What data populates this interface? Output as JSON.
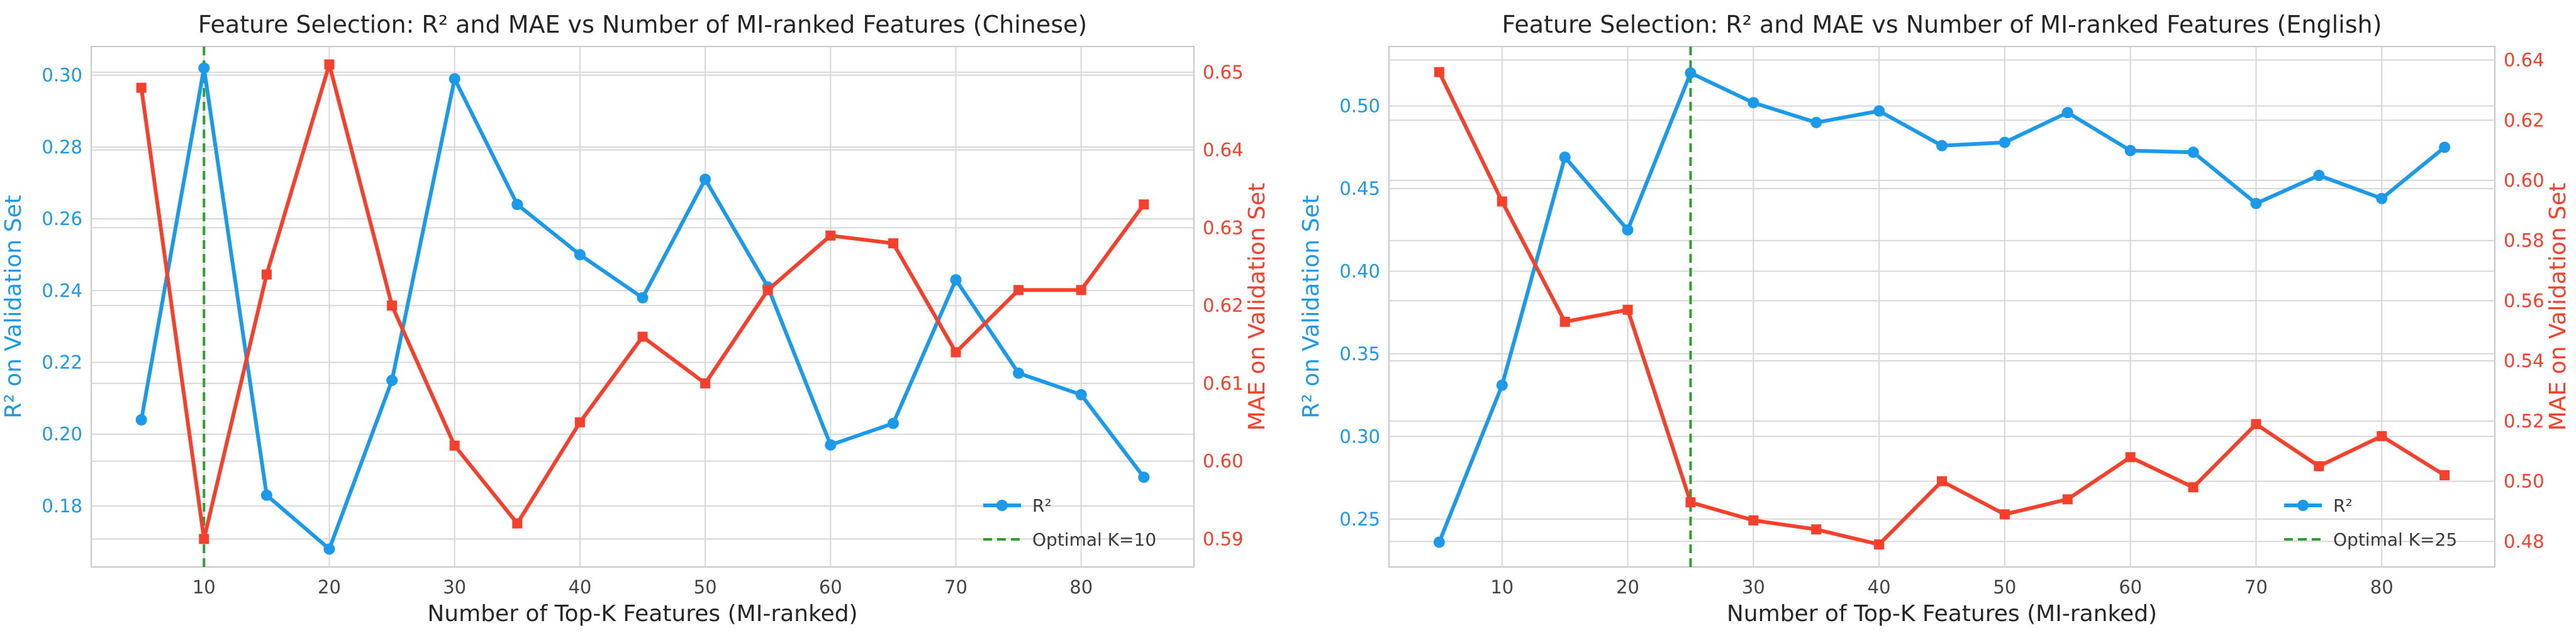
{
  "colors": {
    "r2": "#1a9ae8",
    "mae": "#f5402c",
    "optimal": "#2ca02c",
    "grid": "#d7d7d7",
    "axis_text": "#444444"
  },
  "chart_data": [
    {
      "type": "line",
      "title": "Feature Selection: R² and MAE vs Number of MI-ranked Features (Chinese)",
      "xlabel": "Number of Top-K Features (MI-ranked)",
      "ylabel": "R² on Validation Set",
      "ylabel_right": "MAE on Validation Set",
      "x": [
        5,
        10,
        15,
        20,
        25,
        30,
        35,
        40,
        45,
        50,
        55,
        60,
        65,
        70,
        75,
        80,
        85
      ],
      "xticks": [
        10,
        20,
        30,
        40,
        50,
        60,
        70,
        80
      ],
      "xlim": [
        1,
        89
      ],
      "ylim": [
        0.163,
        0.308
      ],
      "yticks": [
        0.18,
        0.2,
        0.22,
        0.24,
        0.26,
        0.28,
        0.3
      ],
      "ylim_right": [
        0.5864,
        0.6533
      ],
      "yticks_right": [
        0.59,
        0.6,
        0.61,
        0.62,
        0.63,
        0.64,
        0.65
      ],
      "series": [
        {
          "name": "R²",
          "axis": "left",
          "marker": "circle",
          "values": [
            0.204,
            0.302,
            0.183,
            0.168,
            0.215,
            0.299,
            0.264,
            0.25,
            0.238,
            0.271,
            0.241,
            0.197,
            0.203,
            0.243,
            0.217,
            0.211,
            0.188
          ]
        },
        {
          "name": "",
          "axis": "right",
          "marker": "square",
          "values": [
            0.648,
            0.59,
            0.624,
            0.651,
            0.62,
            0.602,
            0.592,
            0.605,
            0.616,
            0.61,
            0.622,
            0.629,
            0.628,
            0.614,
            0.622,
            0.622,
            0.633
          ]
        }
      ],
      "optimal_k": 10,
      "legend": {
        "placement": "lower-right",
        "entries": [
          "R²",
          "Optimal K=10"
        ]
      },
      "grid": true
    },
    {
      "type": "line",
      "title": "Feature Selection: R² and MAE vs Number of MI-ranked Features (English)",
      "xlabel": "Number of Top-K Features (MI-ranked)",
      "ylabel": "R² on Validation Set",
      "ylabel_right": "MAE on Validation Set",
      "x": [
        5,
        10,
        15,
        20,
        25,
        30,
        35,
        40,
        45,
        50,
        55,
        60,
        65,
        70,
        75,
        80,
        85
      ],
      "xticks": [
        10,
        20,
        30,
        40,
        50,
        60,
        70,
        80
      ],
      "xlim": [
        1,
        89
      ],
      "ylim": [
        0.221,
        0.536
      ],
      "yticks": [
        0.25,
        0.3,
        0.35,
        0.4,
        0.45,
        0.5
      ],
      "ylim_right": [
        0.4715,
        0.6445
      ],
      "yticks_right": [
        0.48,
        0.5,
        0.52,
        0.54,
        0.56,
        0.58,
        0.6,
        0.62,
        0.64
      ],
      "series": [
        {
          "name": "R²",
          "axis": "left",
          "marker": "circle",
          "values": [
            0.236,
            0.331,
            0.469,
            0.425,
            0.52,
            0.502,
            0.49,
            0.497,
            0.476,
            0.478,
            0.496,
            0.473,
            0.472,
            0.441,
            0.458,
            0.444,
            0.475
          ]
        },
        {
          "name": "",
          "axis": "right",
          "marker": "square",
          "values": [
            0.636,
            0.593,
            0.553,
            0.557,
            0.493,
            0.487,
            0.484,
            0.479,
            0.5,
            0.489,
            0.494,
            0.508,
            0.498,
            0.519,
            0.505,
            0.515,
            0.502
          ]
        }
      ],
      "optimal_k": 25,
      "legend": {
        "placement": "lower-right",
        "entries": [
          "R²",
          "Optimal K=25"
        ]
      },
      "grid": true
    }
  ]
}
